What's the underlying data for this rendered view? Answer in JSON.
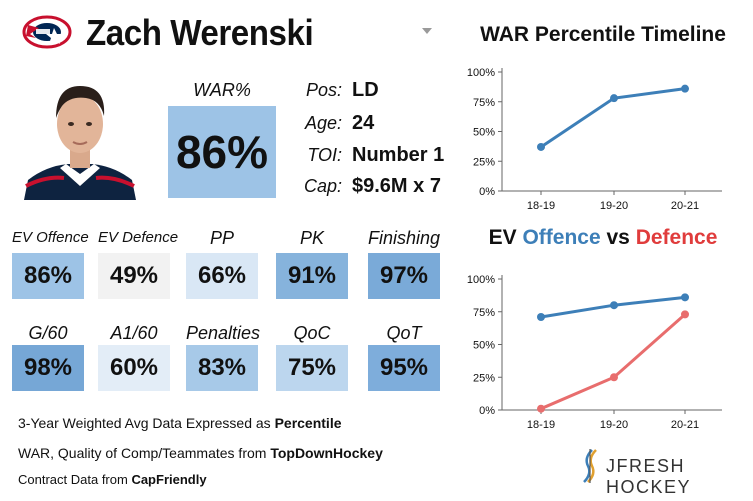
{
  "player": {
    "name": "Zach Werenski",
    "war_label": "WAR%",
    "war_value": "86%",
    "info": [
      {
        "label": "Pos:",
        "value": "LD"
      },
      {
        "label": "Age:",
        "value": "24"
      },
      {
        "label": "TOI:",
        "value": "Number 1"
      },
      {
        "label": "Cap:",
        "value": "$9.6M x 7"
      }
    ]
  },
  "stats": [
    {
      "label": "EV Offence",
      "value": "86%",
      "color": "#9dc3e6"
    },
    {
      "label": "EV Defence",
      "value": "49%",
      "color": "#f2f2f2"
    },
    {
      "label": "PP",
      "value": "66%",
      "color": "#d9e7f5"
    },
    {
      "label": "PK",
      "value": "91%",
      "color": "#86b3dc"
    },
    {
      "label": "Finishing",
      "value": "97%",
      "color": "#7aaad8"
    },
    {
      "label": "G/60",
      "value": "98%",
      "color": "#76a7d6"
    },
    {
      "label": "A1/60",
      "value": "60%",
      "color": "#e3edf7"
    },
    {
      "label": "Penalties",
      "value": "83%",
      "color": "#a7c9e8"
    },
    {
      "label": "QoC",
      "value": "75%",
      "color": "#bcd6ee"
    },
    {
      "label": "QoT",
      "value": "95%",
      "color": "#7eaddb"
    }
  ],
  "notes": [
    {
      "text": "3-Year Weighted Avg Data Expressed as ",
      "bold": "Percentile"
    },
    {
      "text": "WAR, Quality of Comp/Teammates from ",
      "bold": "TopDownHockey"
    },
    {
      "text": "Contract Data from ",
      "bold": "CapFriendly"
    }
  ],
  "brand": "JFRESH HOCKEY",
  "chart_data": [
    {
      "type": "line",
      "title": "WAR Percentile Timeline",
      "categories": [
        "18-19",
        "19-20",
        "20-21"
      ],
      "series": [
        {
          "values": [
            37,
            78,
            86
          ],
          "color": "#3d7fb8"
        }
      ],
      "yticks": [
        "0%",
        "25%",
        "50%",
        "75%",
        "100%"
      ],
      "ylim": [
        0,
        100
      ],
      "grid": false
    },
    {
      "type": "line",
      "title_parts": [
        {
          "text": "EV ",
          "color": "#111111"
        },
        {
          "text": "Offence",
          "color": "#3d7fb8"
        },
        {
          "text": " vs ",
          "color": "#111111"
        },
        {
          "text": "Defence",
          "color": "#e03c3c"
        }
      ],
      "categories": [
        "18-19",
        "19-20",
        "20-21"
      ],
      "series": [
        {
          "values": [
            71,
            80,
            86
          ],
          "color": "#3d7fb8"
        },
        {
          "values": [
            1,
            25,
            73
          ],
          "color": "#e86d6d"
        }
      ],
      "yticks": [
        "0%",
        "25%",
        "50%",
        "75%",
        "100%"
      ],
      "ylim": [
        0,
        100
      ],
      "grid": false
    }
  ]
}
